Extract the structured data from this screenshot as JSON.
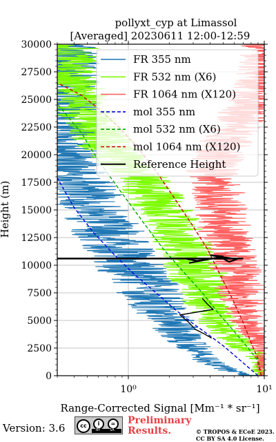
{
  "chart_data": {
    "type": "line",
    "title": [
      "pollyxt_cyp at Limassol",
      "[Averaged] 20230611 12:00-12:59"
    ],
    "xlabel": "Range-Corrected Signal [Mm⁻¹ * sr⁻¹]",
    "ylabel": "Height (m)",
    "xscale": "log",
    "xlim": [
      0.3,
      10
    ],
    "ylim": [
      0,
      30000
    ],
    "x_ticks": [
      {
        "value": 1,
        "label": "10⁰"
      },
      {
        "value": 10,
        "label": "10¹"
      }
    ],
    "y_ticks": [
      0,
      2500,
      5000,
      7500,
      10000,
      12500,
      15000,
      17500,
      20000,
      22500,
      25000,
      27500,
      30000
    ],
    "grid": true,
    "legend_position": "top-right",
    "series": [
      {
        "name": "FR 355 nm",
        "color": "#1f77b4",
        "style": "solid",
        "kind": "signal",
        "points": [
          [
            7.5,
            0
          ],
          [
            4.5,
            800
          ],
          [
            3.6,
            1500
          ],
          [
            3.0,
            2300
          ],
          [
            2.6,
            3200
          ],
          [
            2.1,
            4300
          ],
          [
            1.75,
            5500
          ],
          [
            1.45,
            7000
          ],
          [
            1.2,
            8500
          ],
          [
            1.0,
            9800
          ],
          [
            0.85,
            11000
          ],
          [
            0.7,
            12500
          ],
          [
            0.6,
            14000
          ],
          [
            0.5,
            15500
          ],
          [
            0.42,
            17000
          ],
          [
            0.35,
            18500
          ],
          [
            0.32,
            20000
          ]
        ]
      },
      {
        "name": "FR 532 nm (X6)",
        "color": "#7cfc00",
        "style": "solid",
        "kind": "signal",
        "points": [
          [
            9.5,
            0
          ],
          [
            9.5,
            1500
          ],
          [
            6.5,
            2800
          ],
          [
            5.0,
            4000
          ],
          [
            4.2,
            5200
          ],
          [
            3.6,
            6800
          ],
          [
            3.2,
            8200
          ],
          [
            3.0,
            9500
          ],
          [
            2.6,
            11000
          ],
          [
            2.3,
            12500
          ],
          [
            2.0,
            14000
          ],
          [
            1.6,
            15500
          ],
          [
            1.35,
            17000
          ],
          [
            1.0,
            18500
          ],
          [
            0.75,
            20000
          ],
          [
            0.6,
            21500
          ],
          [
            0.5,
            23000
          ],
          [
            0.42,
            25000
          ],
          [
            0.35,
            27000
          ]
        ]
      },
      {
        "name": "FR 1064 nm (X120)",
        "color": "#ff6060",
        "style": "solid",
        "kind": "signal",
        "points": [
          [
            10,
            0
          ],
          [
            10,
            2000
          ],
          [
            8.5,
            3500
          ],
          [
            7.3,
            5000
          ],
          [
            6.5,
            7000
          ],
          [
            6.0,
            9000
          ],
          [
            5.3,
            11000
          ],
          [
            5.0,
            12500
          ],
          [
            4.8,
            14000
          ],
          [
            4.5,
            15500
          ],
          [
            4.3,
            17000
          ],
          [
            4.0,
            18500
          ],
          [
            4.5,
            20000
          ],
          [
            5.5,
            22000
          ],
          [
            7.0,
            24000
          ],
          [
            9.0,
            26500
          ],
          [
            10,
            29000
          ]
        ]
      },
      {
        "name": "mol 355 nm",
        "color": "#0000dd",
        "style": "dashed",
        "kind": "model",
        "points": [
          [
            9.0,
            0
          ],
          [
            6.5,
            1500
          ],
          [
            5.0,
            2700
          ],
          [
            3.9,
            3700
          ],
          [
            3.0,
            4700
          ],
          [
            2.2,
            6000
          ],
          [
            1.6,
            7500
          ],
          [
            1.1,
            9200
          ],
          [
            0.78,
            11000
          ],
          [
            0.55,
            13000
          ],
          [
            0.4,
            15200
          ],
          [
            0.3,
            17900
          ]
        ]
      },
      {
        "name": "mol 532 nm (X6)",
        "color": "#00aa00",
        "style": "dashed",
        "kind": "model",
        "points": [
          [
            9.5,
            0
          ],
          [
            8.8,
            1500
          ],
          [
            7.5,
            2600
          ],
          [
            6.0,
            4000
          ],
          [
            4.5,
            5800
          ],
          [
            3.5,
            7500
          ],
          [
            2.5,
            9500
          ],
          [
            1.8,
            11500
          ],
          [
            1.3,
            13800
          ],
          [
            0.9,
            16500
          ],
          [
            0.6,
            19500
          ],
          [
            0.45,
            22000
          ],
          [
            0.3,
            24600
          ]
        ]
      },
      {
        "name": "mol 1064 nm (X120)",
        "color": "#cc0000",
        "style": "dashed",
        "kind": "model",
        "points": [
          [
            9.5,
            0
          ],
          [
            9.0,
            1500
          ],
          [
            8.0,
            3000
          ],
          [
            7.0,
            4800
          ],
          [
            5.8,
            7000
          ],
          [
            4.8,
            9000
          ],
          [
            3.8,
            11500
          ],
          [
            3.0,
            13500
          ],
          [
            2.2,
            16000
          ],
          [
            1.6,
            18500
          ],
          [
            1.2,
            20500
          ],
          [
            0.85,
            22500
          ],
          [
            0.6,
            24200
          ],
          [
            0.45,
            25400
          ],
          [
            0.3,
            26500
          ]
        ]
      },
      {
        "name": "Reference Height",
        "color": "#000000",
        "style": "solid",
        "kind": "reference",
        "points": [
          [
            2.6,
            10600
          ],
          [
            3.2,
            10400
          ],
          [
            4.8,
            10700
          ],
          [
            5.5,
            10300
          ],
          [
            6.3,
            10550
          ],
          [
            4.0,
            10900
          ],
          [
            5.0,
            10800
          ],
          [
            2.8,
            10200
          ],
          [
            3.5,
            7000
          ],
          [
            3.8,
            6500
          ],
          [
            4.2,
            6000
          ],
          [
            2.4,
            5500
          ],
          [
            2.8,
            4800
          ],
          [
            3.1,
            4200
          ],
          [
            3.6,
            3800
          ],
          [
            4.1,
            3400
          ]
        ]
      }
    ]
  },
  "footer": {
    "version": "Version: 3.6",
    "cc_text": [
      "cc",
      "i",
      "=",
      "BY",
      "SA"
    ],
    "preliminary": [
      "Preliminary",
      "Results."
    ],
    "copyright": [
      "© TROPOS & ECoE 2023.",
      "CC BY SA 4.0 License."
    ]
  }
}
